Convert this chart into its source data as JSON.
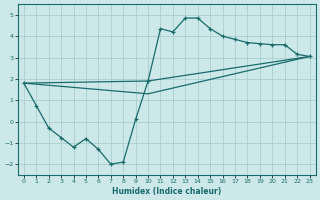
{
  "xlabel": "Humidex (Indice chaleur)",
  "xlim": [
    -0.5,
    23.5
  ],
  "ylim": [
    -2.5,
    5.5
  ],
  "xticks": [
    0,
    1,
    2,
    3,
    4,
    5,
    6,
    7,
    8,
    9,
    10,
    11,
    12,
    13,
    14,
    15,
    16,
    17,
    18,
    19,
    20,
    21,
    22,
    23
  ],
  "yticks": [
    -2,
    -1,
    0,
    1,
    2,
    3,
    4,
    5
  ],
  "background_color": "#cce8e8",
  "grid_color": "#aacece",
  "line_color": "#1a6b6b",
  "jagged_x": [
    0,
    1,
    2,
    3,
    4,
    5,
    6,
    7,
    8,
    9,
    10,
    11,
    12,
    13,
    14,
    15,
    16,
    17,
    18,
    19,
    20,
    21,
    22,
    23
  ],
  "jagged_y": [
    1.8,
    0.75,
    -0.3,
    -0.75,
    -1.2,
    -0.8,
    -1.3,
    -2.0,
    -1.9,
    0.1,
    1.9,
    4.35,
    4.2,
    4.85,
    4.85,
    4.35,
    4.0,
    3.85,
    3.7,
    3.65,
    3.6,
    3.6,
    3.15,
    3.05
  ],
  "line2_x": [
    0,
    10,
    23
  ],
  "line2_y": [
    1.8,
    1.9,
    3.05
  ],
  "line3_x": [
    0,
    10,
    23
  ],
  "line3_y": [
    1.8,
    1.3,
    3.05
  ]
}
